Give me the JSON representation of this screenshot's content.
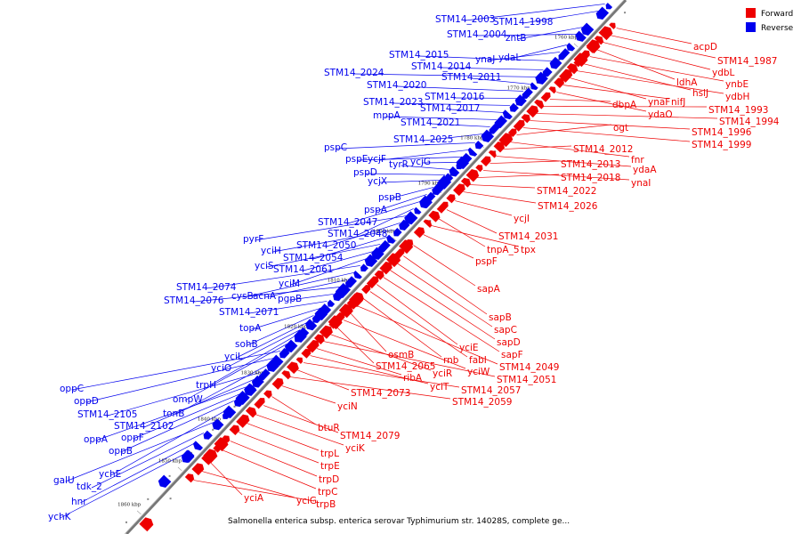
{
  "title": "Salmonella enterica subsp. enterica serovar Typhimurium str. 14028S, complete ge...",
  "legend": [
    {
      "label": "Forward",
      "color": "#ee0000"
    },
    {
      "label": "Reverse",
      "color": "#0000ee"
    }
  ],
  "colors": {
    "forward": "#ee0000",
    "reverse": "#0000ee",
    "backbone": "#777777"
  },
  "ticks": [
    {
      "kbp": 1760,
      "label": "1760 kbp"
    },
    {
      "kbp": 1770,
      "label": "1770 kbp"
    },
    {
      "kbp": 1780,
      "label": "1780 kbp"
    },
    {
      "kbp": 1790,
      "label": "1790 kbp"
    },
    {
      "kbp": 1800,
      "label": "1800 kbp"
    },
    {
      "kbp": 1810,
      "label": "1810 kbp"
    },
    {
      "kbp": 1820,
      "label": "1820 kbp"
    },
    {
      "kbp": 1830,
      "label": "1830 kbp"
    },
    {
      "kbp": 1840,
      "label": "1840 kbp"
    },
    {
      "kbp": 1850,
      "label": "1850 kbp"
    },
    {
      "kbp": 1860,
      "label": "1860 kbp"
    }
  ],
  "reverse_genes": [
    "STM14_2003",
    "STM14_1998",
    "zntB",
    "STM14_2004",
    "ydaL",
    "ynaJ",
    "STM14_2015",
    "STM14_2014",
    "STM14_2024",
    "STM14_2011",
    "STM14_2020",
    "STM14_2016",
    "STM14_2023",
    "STM14_2017",
    "mppA",
    "STM14_2021",
    "STM14_2025",
    "pspC",
    "ycjF",
    "pspE",
    "ycjG",
    "tyrR",
    "pspD",
    "ycjX",
    "pspB",
    "pspA",
    "STM14_2047",
    "STM14_2048",
    "pyrF",
    "STM14_2050",
    "yciH",
    "STM14_2054",
    "yciS",
    "STM14_2061",
    "yciM",
    "STM14_2074",
    "cysB",
    "acnA",
    "STM14_2076",
    "pgpB",
    "STM14_2071",
    "topA",
    "sohB",
    "yciL",
    "yciO",
    "trpH",
    "ompW",
    "oppC",
    "oppD",
    "tonB",
    "STM14_2105",
    "STM14_2102",
    "oppA",
    "oppF",
    "oppB",
    "ychE",
    "galU",
    "tdk_2",
    "hnr",
    "ychK"
  ],
  "forward_genes": [
    "acpD",
    "STM14_1987",
    "ydbL",
    "ldhA",
    "ynbE",
    "hslJ",
    "ydbH",
    "ynaF",
    "nifJ",
    "ydaO",
    "dbpA",
    "STM14_1993",
    "STM14_1994",
    "STM14_1996",
    "STM14_1999",
    "ogt",
    "fnr",
    "STM14_2012",
    "ydaA",
    "STM14_2013",
    "ynaI",
    "STM14_2018",
    "STM14_2022",
    "STM14_2026",
    "ycjI",
    "STM14_2031",
    "tnpA_5",
    "tpx",
    "pspF",
    "sapA",
    "sapB",
    "sapC",
    "sapD",
    "sapF",
    "yciE",
    "fabI",
    "rnb",
    "STM14_2049",
    "osmB",
    "yciW",
    "STM14_2065",
    "yciR",
    "STM14_2051",
    "ribA",
    "yciT",
    "STM14_2057",
    "STM14_2073",
    "STM14_2059",
    "yciN",
    "btuR",
    "STM14_2079",
    "yciK",
    "trpL",
    "trpE",
    "trpD",
    "trpC",
    "yciA",
    "yciG",
    "trpB"
  ]
}
